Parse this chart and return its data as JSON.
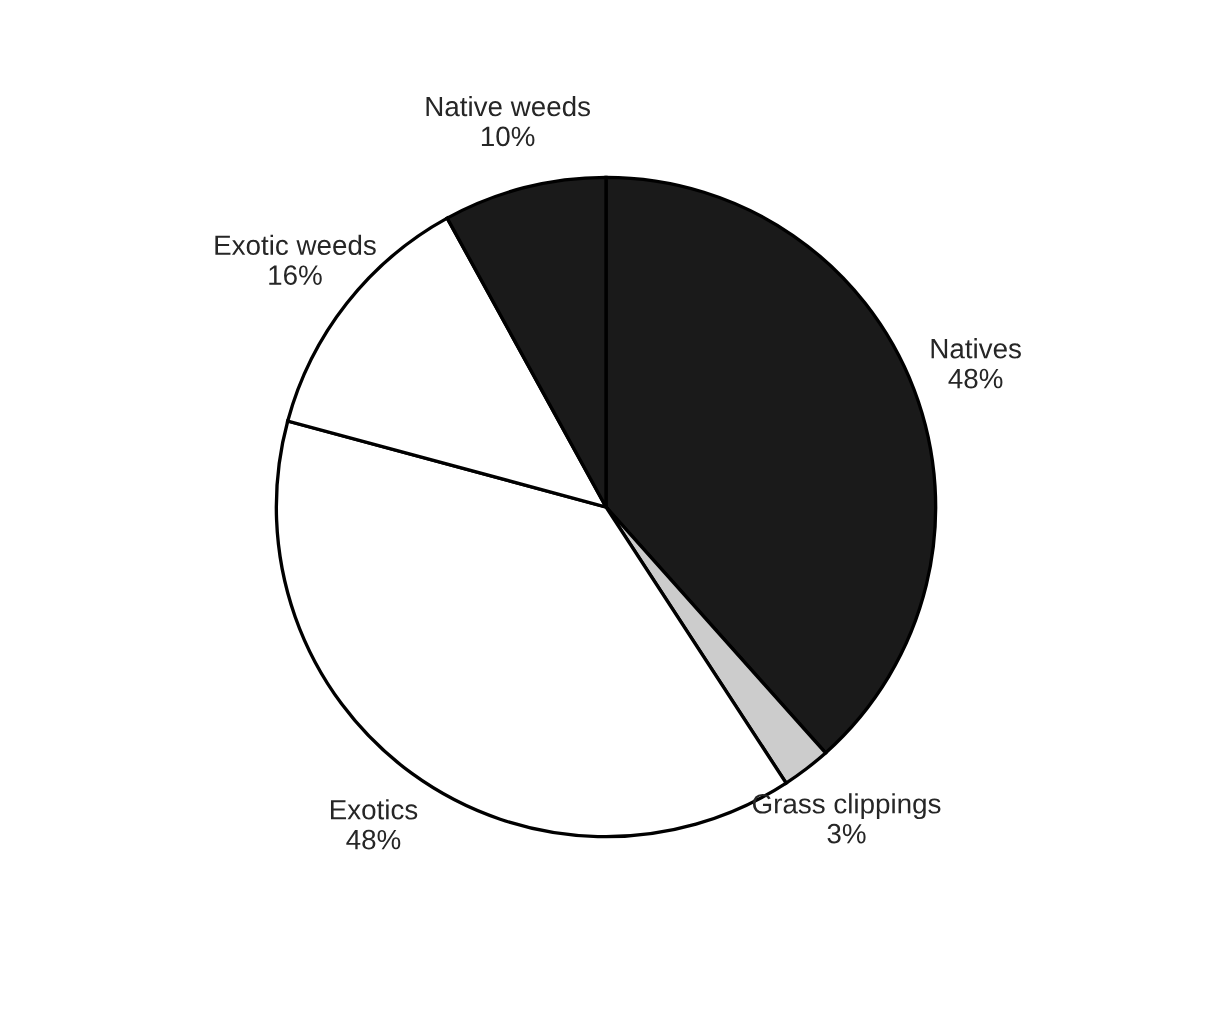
{
  "chart_data": {
    "type": "pie",
    "categories": [
      "Natives",
      "Grass clippings",
      "Exotics",
      "Exotic weeds",
      "Native weeds"
    ],
    "values": [
      48,
      3,
      48,
      16,
      10
    ],
    "value_labels": [
      "48%",
      "3%",
      "48%",
      "16%",
      "10%"
    ],
    "colors": [
      "#1a1a1a",
      "#cccccc",
      "#ffffff",
      "#ffffff",
      "#1a1a1a"
    ]
  }
}
